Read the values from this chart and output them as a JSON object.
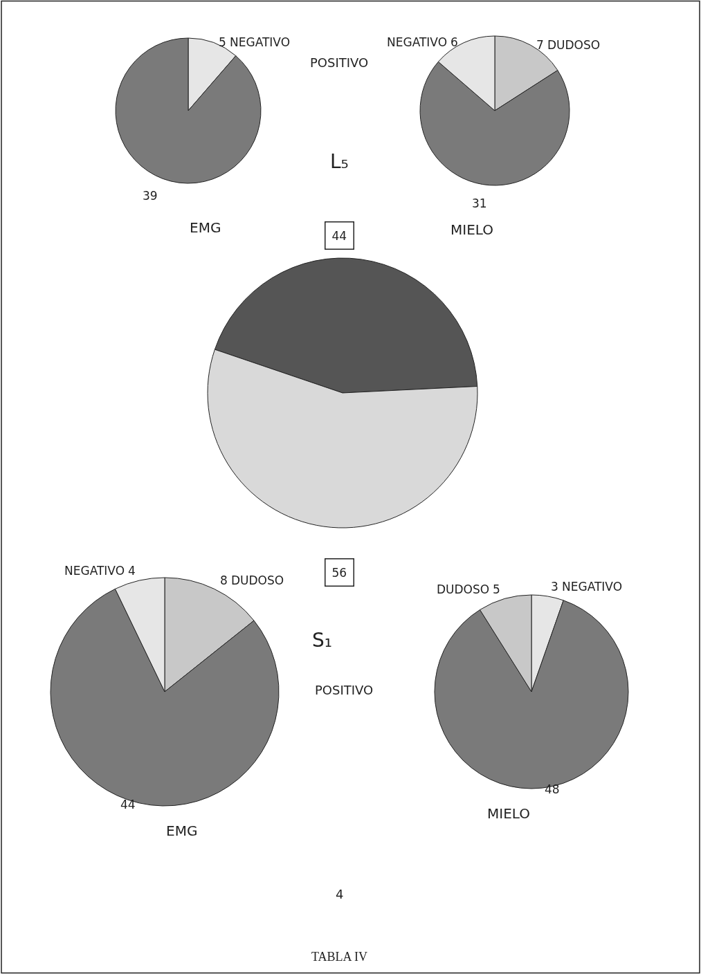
{
  "chart_data": [
    {
      "type": "pie",
      "title": "EMG",
      "categories": [
        "NEGATIVO",
        null
      ],
      "values": [
        5,
        39
      ],
      "colors": [
        "#e6e6e6",
        "#7a7a7a"
      ],
      "data_labels": true
    },
    {
      "type": "pie",
      "title": "MIELO",
      "categories": [
        "DUDOSO",
        null,
        "NEGATIVO"
      ],
      "values": [
        7,
        31,
        6
      ],
      "colors": [
        "#c8c8c8",
        "#7a7a7a",
        "#e6e6e6"
      ],
      "data_labels": true
    },
    {
      "type": "pie",
      "categories": [
        null,
        null
      ],
      "values": [
        44,
        56
      ],
      "colors": [
        "#555555",
        "#d9d9d9"
      ],
      "data_labels": true,
      "annotations": [
        "POSITIVO",
        "L₅",
        "POSITIVO",
        "S₁",
        "4",
        "TABLA IV"
      ]
    },
    {
      "type": "pie",
      "title": "EMG",
      "categories": [
        "DUDOSO",
        null,
        "NEGATIVO"
      ],
      "values": [
        8,
        44,
        4
      ],
      "colors": [
        "#c8c8c8",
        "#7a7a7a",
        "#e6e6e6"
      ],
      "data_labels": true
    },
    {
      "type": "pie",
      "title": "MIELO",
      "categories": [
        "NEGATIVO",
        null,
        "DUDOSO"
      ],
      "values": [
        3,
        48,
        5
      ],
      "colors": [
        "#e6e6e6",
        "#7a7a7a",
        "#c8c8c8"
      ],
      "data_labels": true
    }
  ]
}
